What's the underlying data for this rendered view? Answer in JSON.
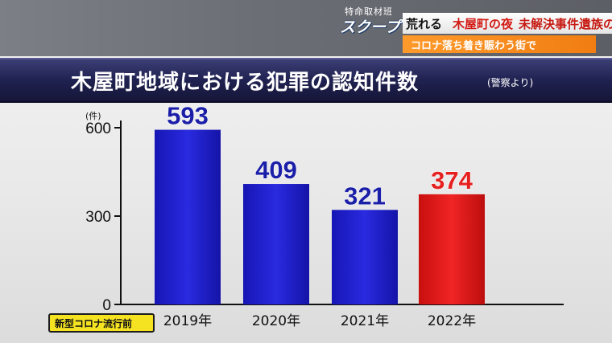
{
  "header": {
    "logo_top": "特命取材班",
    "logo_main": "スクープ",
    "headline_part1": "荒れる",
    "headline_part2": "木屋町の夜",
    "headline_part3": "未解決事件遺族の思い",
    "subline": "コロナ落ち着き賑わう街で"
  },
  "title": "木屋町地域における犯罪の認知件数",
  "source_note": "(警察より)",
  "annotation": "新型コロナ流行前",
  "colors": {
    "blue": "#1f1fc9",
    "red": "#e11717",
    "blue_label": "#1b1fa8",
    "red_label": "#e61f1f"
  },
  "chart_data": {
    "type": "bar",
    "categories": [
      "2019年",
      "2020年",
      "2021年",
      "2022年"
    ],
    "values": [
      593,
      409,
      321,
      374
    ],
    "highlight_index": 3,
    "ylabel": "(件)",
    "yticks": [
      0,
      300,
      600
    ],
    "ylim": [
      0,
      650
    ],
    "grid": false
  }
}
